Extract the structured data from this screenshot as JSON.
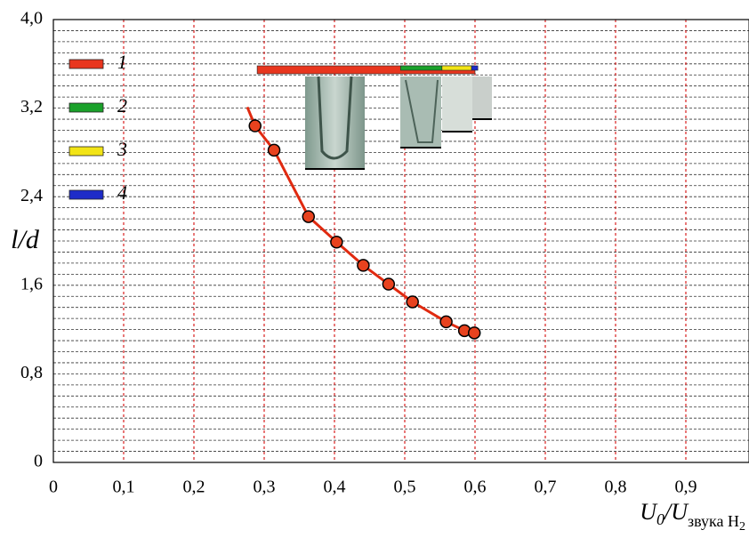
{
  "chart_data": {
    "type": "line",
    "x_label": [
      "U",
      "0",
      "/U",
      "звука H",
      "2"
    ],
    "y_label": "l/d",
    "xlim": [
      0,
      0.99
    ],
    "ylim": [
      0,
      4
    ],
    "xticks": [
      {
        "value": 0,
        "label": "0"
      },
      {
        "value": 0.1,
        "label": "0,1"
      },
      {
        "value": 0.2,
        "label": "0,2"
      },
      {
        "value": 0.3,
        "label": "0,3"
      },
      {
        "value": 0.4,
        "label": "0,4"
      },
      {
        "value": 0.5,
        "label": "0,5"
      },
      {
        "value": 0.6,
        "label": "0,6"
      },
      {
        "value": 0.7,
        "label": "0,7"
      },
      {
        "value": 0.8,
        "label": "0,8"
      },
      {
        "value": 0.9,
        "label": "0,9"
      }
    ],
    "yticks": [
      {
        "value": 0,
        "label": "0"
      },
      {
        "value": 0.8,
        "label": "0,8"
      },
      {
        "value": 1.6,
        "label": "1,6"
      },
      {
        "value": 2.4,
        "label": "2,4"
      },
      {
        "value": 3.2,
        "label": "3,2"
      },
      {
        "value": 4.0,
        "label": "4,0"
      }
    ],
    "minor_yticks": [
      0.1,
      0.2,
      0.3,
      0.4,
      0.5,
      0.6,
      0.7,
      0.9,
      1.0,
      1.1,
      1.2,
      1.3,
      1.4,
      1.5,
      1.7,
      1.8,
      1.9,
      2.0,
      2.1,
      2.2,
      2.3,
      2.5,
      2.6,
      2.7,
      2.8,
      2.9,
      3.0,
      3.1,
      3.3,
      3.4,
      3.5,
      3.6,
      3.7,
      3.8,
      3.9
    ],
    "series": [
      {
        "color": "#e02a10",
        "x": [
          0.276,
          0.287,
          0.314,
          0.363,
          0.403,
          0.441,
          0.477,
          0.511,
          0.559,
          0.585,
          0.599
        ],
        "values": [
          3.21,
          3.04,
          2.82,
          2.22,
          1.99,
          1.78,
          1.61,
          1.45,
          1.27,
          1.19,
          1.17
        ]
      },
      {
        "color": "#e8421e",
        "marker": true,
        "x": [
          0.287,
          0.314,
          0.363,
          0.403,
          0.441,
          0.477,
          0.511,
          0.559,
          0.585,
          0.599
        ],
        "values": [
          3.04,
          2.82,
          2.22,
          1.99,
          1.78,
          1.61,
          1.45,
          1.27,
          1.19,
          1.17
        ]
      }
    ],
    "ranges": [
      {
        "name": "1",
        "color": "#e8361e",
        "x": [
          0.29,
          0.6
        ]
      },
      {
        "name": "2",
        "color": "#1aa12a",
        "x": [
          0.494,
          0.553
        ]
      },
      {
        "name": "3",
        "color": "#f2e416",
        "x": [
          0.553,
          0.595
        ]
      },
      {
        "name": "4",
        "color": "#1e2cc8",
        "x": [
          0.595,
          0.604
        ]
      }
    ]
  }
}
